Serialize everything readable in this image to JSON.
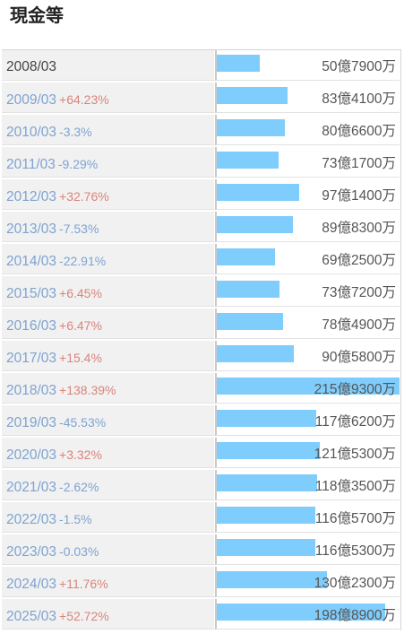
{
  "title": "現金等",
  "chart_data": {
    "type": "bar",
    "orientation": "horizontal",
    "title": "現金等",
    "unit": "億円",
    "categories": [
      "2008/03",
      "2009/03",
      "2010/03",
      "2011/03",
      "2012/03",
      "2013/03",
      "2014/03",
      "2015/03",
      "2016/03",
      "2017/03",
      "2018/03",
      "2019/03",
      "2020/03",
      "2021/03",
      "2022/03",
      "2023/03",
      "2024/03",
      "2025/03"
    ],
    "values": [
      50.79,
      83.41,
      80.66,
      73.17,
      97.14,
      89.83,
      69.25,
      73.72,
      78.49,
      90.58,
      215.93,
      117.62,
      121.53,
      118.35,
      116.57,
      116.53,
      130.23,
      198.89
    ],
    "value_labels": [
      "50億7900万",
      "83億4100万",
      "80億6600万",
      "73億1700万",
      "97億1400万",
      "89億8300万",
      "69億2500万",
      "73億7200万",
      "78億4900万",
      "90億5800万",
      "215億9300万",
      "117億6200万",
      "121億5300万",
      "118億3500万",
      "116億5700万",
      "116億5300万",
      "130億2300万",
      "198億8900万"
    ],
    "changes": [
      "",
      "+64.23%",
      "-3.3%",
      "-9.29%",
      "+32.76%",
      "-7.53%",
      "-22.91%",
      "+6.45%",
      "+6.47%",
      "+15.4%",
      "+138.39%",
      "-45.53%",
      "+3.32%",
      "-2.62%",
      "-1.5%",
      "-0.03%",
      "+11.76%",
      "+52.72%"
    ],
    "xlim": [
      0,
      215.93
    ]
  },
  "colors": {
    "bar": "#7fcdfc",
    "positive": "#d9847b",
    "negative": "#7ea3d0"
  }
}
